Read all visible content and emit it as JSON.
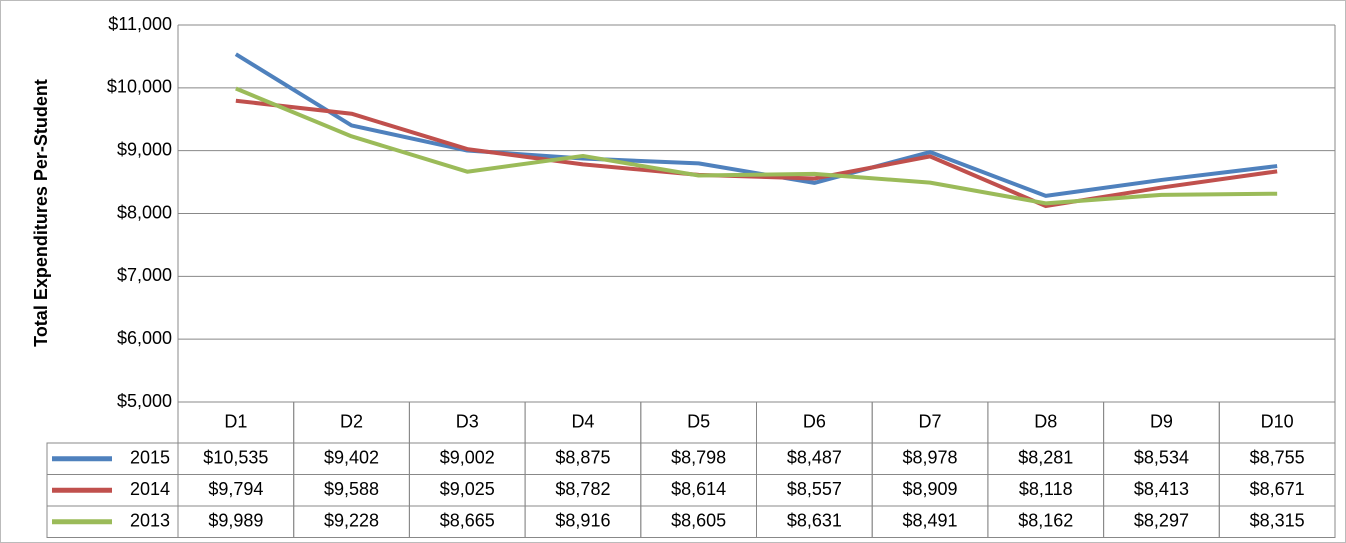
{
  "chart_data": {
    "type": "line",
    "y_axis_label": "Total Expenditures Per-Student",
    "categories": [
      "D1",
      "D2",
      "D3",
      "D4",
      "D5",
      "D6",
      "D7",
      "D8",
      "D9",
      "D10"
    ],
    "series": [
      {
        "name": "2015",
        "color": "#4f81bd",
        "values": [
          10535,
          9402,
          9002,
          8875,
          8798,
          8487,
          8978,
          8281,
          8534,
          8755
        ],
        "value_labels": [
          "$10,535",
          "$9,402",
          "$9,002",
          "$8,875",
          "$8,798",
          "$8,487",
          "$8,978",
          "$8,281",
          "$8,534",
          "$8,755"
        ]
      },
      {
        "name": "2014",
        "color": "#c0504d",
        "values": [
          9794,
          9588,
          9025,
          8782,
          8614,
          8557,
          8909,
          8118,
          8413,
          8671
        ],
        "value_labels": [
          "$9,794",
          "$9,588",
          "$9,025",
          "$8,782",
          "$8,614",
          "$8,557",
          "$8,909",
          "$8,118",
          "$8,413",
          "$8,671"
        ]
      },
      {
        "name": "2013",
        "color": "#9bbb59",
        "values": [
          9989,
          9228,
          8665,
          8916,
          8605,
          8631,
          8491,
          8162,
          8297,
          8315
        ],
        "value_labels": [
          "$9,989",
          "$9,228",
          "$8,665",
          "$8,916",
          "$8,605",
          "$8,631",
          "$8,491",
          "$8,162",
          "$8,297",
          "$8,315"
        ]
      }
    ],
    "ylim": [
      5000,
      11000
    ],
    "yticks": [
      {
        "value": 5000,
        "label": "$5,000"
      },
      {
        "value": 6000,
        "label": "$6,000"
      },
      {
        "value": 7000,
        "label": "$7,000"
      },
      {
        "value": 8000,
        "label": "$8,000"
      },
      {
        "value": 9000,
        "label": "$9,000"
      },
      {
        "value": 10000,
        "label": "$10,000"
      },
      {
        "value": 11000,
        "label": "$11,000"
      }
    ],
    "grid": true
  }
}
